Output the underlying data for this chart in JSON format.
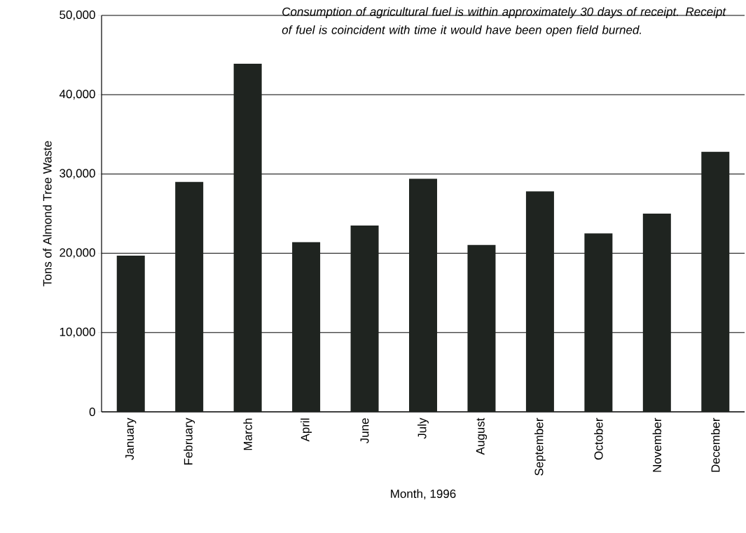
{
  "chart_data": {
    "type": "bar",
    "xlabel": "Month, 1996",
    "ylabel": "Tons of Almond Tree Waste",
    "categories": [
      "January",
      "February",
      "March",
      "April",
      "June",
      "July",
      "August",
      "September",
      "October",
      "November",
      "December"
    ],
    "values": [
      19700,
      29000,
      43900,
      21400,
      23500,
      29400,
      21050,
      27800,
      22500,
      25000,
      32800
    ],
    "color": "#1f2420",
    "ylim": [
      0,
      50000
    ],
    "yticks": [
      0,
      {
        "value": 10000,
        "label": "10,000"
      },
      {
        "value": 20000,
        "label": "20,000"
      },
      {
        "value": 30000,
        "label": "30,000"
      },
      {
        "value": 40000,
        "label": "40,000"
      },
      {
        "value": 50000,
        "label": "50,000"
      }
    ],
    "grid": "y",
    "annotations": [
      "Consumption of agricultural fuel is within approximately 30 days of receipt.  Receipt of fuel is coincident with time it would have been open field burned."
    ]
  }
}
